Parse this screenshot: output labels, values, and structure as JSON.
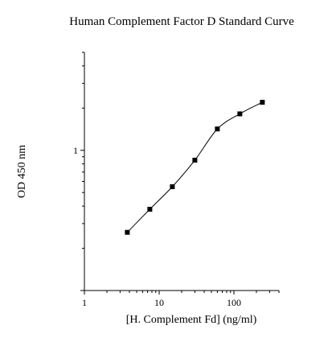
{
  "chart_data": {
    "type": "line",
    "title": "Human Complement Factor D Standard Curve",
    "xlabel": "[H. Complement Fd] (ng/ml)",
    "ylabel": "OD 450 nm",
    "x_scale": "log",
    "y_scale": "log",
    "xlim": [
      1,
      400
    ],
    "ylim": [
      0.1,
      5
    ],
    "x_ticks": [
      {
        "value": 1,
        "label": "1"
      },
      {
        "value": 10,
        "label": "10"
      },
      {
        "value": 100,
        "label": "100"
      }
    ],
    "y_ticks": [
      {
        "value": 1,
        "label": "1"
      }
    ],
    "grid": false,
    "legend": "none",
    "series": [
      {
        "x": [
          3.75,
          7.5,
          15,
          30,
          60,
          120,
          240
        ],
        "y": [
          0.26,
          0.38,
          0.55,
          0.85,
          1.42,
          1.82,
          2.2
        ],
        "marker": "square",
        "color": "#000000"
      }
    ]
  }
}
